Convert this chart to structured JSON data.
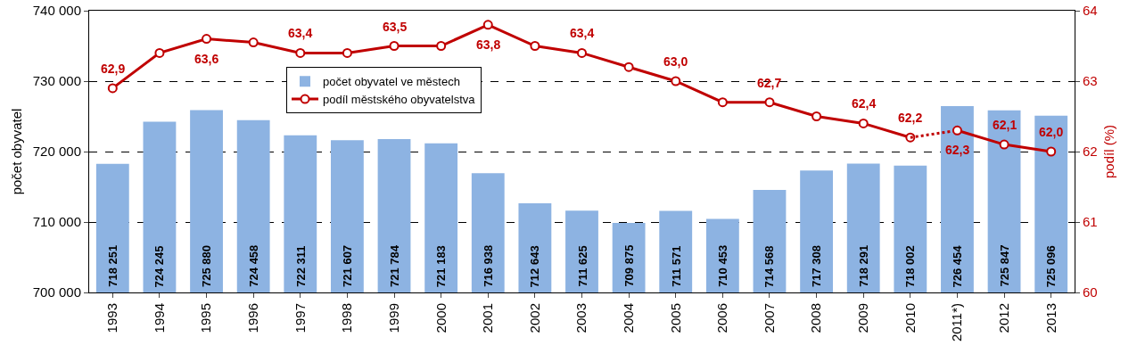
{
  "chart_data": {
    "type": "bar",
    "categories": [
      "1993",
      "1994",
      "1995",
      "1996",
      "1997",
      "1998",
      "1999",
      "2000",
      "2001",
      "2002",
      "2003",
      "2004",
      "2005",
      "2006",
      "2007",
      "2008",
      "2009",
      "2010",
      "2011*)",
      "2012",
      "2013"
    ],
    "ylabel": "počet obyvatel",
    "y2label": "podíl (%)",
    "ylim": [
      700000,
      740000
    ],
    "yticks": [
      {
        "value": 700000,
        "label": "700 000"
      },
      {
        "value": 710000,
        "label": "710 000"
      },
      {
        "value": 720000,
        "label": "720 000"
      },
      {
        "value": 730000,
        "label": "730 000"
      },
      {
        "value": 740000,
        "label": "740 000"
      }
    ],
    "y2lim": [
      60,
      64
    ],
    "y2ticks": [
      60,
      61,
      62,
      63,
      64
    ],
    "grid": "y",
    "legend": "top",
    "series": [
      {
        "name": "počet obyvatel ve městech",
        "color": "#8db3e2",
        "values": [
          718251,
          724245,
          725880,
          724458,
          722311,
          721607,
          721784,
          721183,
          716938,
          712643,
          711625,
          709875,
          711571,
          710453,
          714568,
          717308,
          718291,
          718002,
          726454,
          725847,
          725096
        ],
        "value_labels": [
          "718 251",
          "724 245",
          "725 880",
          "724 458",
          "722 311",
          "721 607",
          "721 784",
          "721 183",
          "716 938",
          "712 643",
          "711 625",
          "709 875",
          "711 571",
          "710 453",
          "714 568",
          "717 308",
          "718 291",
          "718 002",
          "726 454",
          "725 847",
          "725 096"
        ]
      },
      {
        "name": "podíl městského obyvatelstva",
        "type": "line",
        "axis": "y2",
        "color": "#c00000",
        "marker": "circle",
        "line_style": "solid",
        "values": [
          62.9,
          63.4,
          63.6,
          63.55,
          63.4,
          63.4,
          63.5,
          63.5,
          63.8,
          63.5,
          63.4,
          63.2,
          63.0,
          62.7,
          62.7,
          62.5,
          62.4,
          62.2,
          null,
          null,
          null
        ],
        "value_labels": [
          "62,9",
          null,
          "63,6",
          null,
          "63,4",
          null,
          "63,5",
          null,
          "63,8",
          null,
          "63,4",
          null,
          "63,0",
          null,
          "62,7",
          null,
          "62,4",
          "62,2",
          null,
          null,
          null
        ]
      },
      {
        "type": "line",
        "axis": "y2",
        "color": "#c00000",
        "marker": "none",
        "line_style": "dotted",
        "values": [
          null,
          null,
          null,
          null,
          null,
          null,
          null,
          null,
          null,
          null,
          null,
          null,
          null,
          null,
          null,
          null,
          null,
          62.2,
          62.3,
          null,
          null
        ]
      },
      {
        "type": "line",
        "axis": "y2",
        "color": "#c00000",
        "marker": "circle",
        "line_style": "solid",
        "values": [
          null,
          null,
          null,
          null,
          null,
          null,
          null,
          null,
          null,
          null,
          null,
          null,
          null,
          null,
          null,
          null,
          null,
          null,
          62.3,
          62.1,
          62.0
        ],
        "value_labels": [
          null,
          null,
          null,
          null,
          null,
          null,
          null,
          null,
          null,
          null,
          null,
          null,
          null,
          null,
          null,
          null,
          null,
          null,
          "62,3",
          "62,1",
          "62,0"
        ]
      }
    ]
  }
}
